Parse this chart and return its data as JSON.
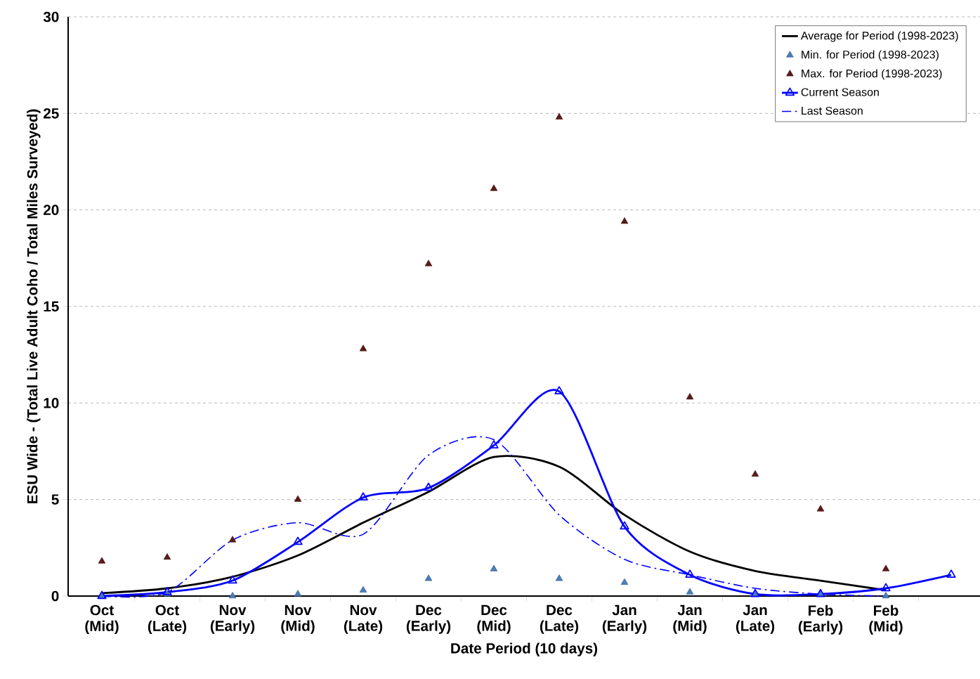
{
  "chart_data": {
    "type": "line",
    "xlabel": "Date Period (10 days)",
    "ylabel": "ESU Wide - (Total Live Adult Coho / Total Miles Surveyed)",
    "categories": [
      "Oct (Mid)",
      "Oct (Late)",
      "Nov (Early)",
      "Nov (Mid)",
      "Nov (Late)",
      "Dec (Early)",
      "Dec (Mid)",
      "Dec (Late)",
      "Jan (Early)",
      "Jan (Mid)",
      "Jan (Late)",
      "Feb (Early)",
      "Feb (Mid)",
      null
    ],
    "series": [
      {
        "name": "Average for Period (1998-2023)",
        "color": "#000000",
        "marker": "none",
        "line_style": "solid",
        "values": [
          0.15,
          0.4,
          1.0,
          2.1,
          3.8,
          5.4,
          7.2,
          6.7,
          4.2,
          2.3,
          1.3,
          0.8,
          0.3,
          null
        ]
      },
      {
        "name": "Min. for Period (1998-2023)",
        "type": "scatter",
        "color": "#4a7ebb",
        "marker": "triangle",
        "values": [
          0.0,
          0.1,
          0.0,
          0.1,
          0.3,
          0.9,
          1.4,
          0.9,
          0.7,
          0.2,
          0.1,
          0.1,
          0.0,
          null
        ]
      },
      {
        "name": "Max. for Period (1998-2023)",
        "type": "scatter",
        "color": "#5a1a18",
        "marker": "triangle",
        "values": [
          1.8,
          2.0,
          2.9,
          5.0,
          12.8,
          17.2,
          21.1,
          24.8,
          19.4,
          10.3,
          6.3,
          4.5,
          1.4,
          null
        ]
      },
      {
        "name": "Current Season",
        "color": "#0000ff",
        "marker": "triangle",
        "line_style": "solid",
        "values": [
          0.0,
          0.2,
          0.8,
          2.8,
          5.1,
          5.6,
          7.8,
          10.6,
          3.6,
          1.1,
          0.1,
          0.1,
          0.4,
          1.1
        ]
      },
      {
        "name": "Last Season",
        "color": "#0000ff",
        "marker": "none",
        "line_style": "dashdot",
        "values": [
          0.0,
          0.2,
          2.9,
          3.8,
          3.2,
          7.3,
          8.1,
          4.2,
          1.9,
          1.1,
          0.4,
          0.1,
          0.0,
          null
        ]
      }
    ],
    "ylim": [
      0,
      30
    ],
    "yticks": [
      0,
      5,
      10,
      15,
      20,
      25,
      30
    ],
    "grid": "y",
    "legend": "top right"
  }
}
